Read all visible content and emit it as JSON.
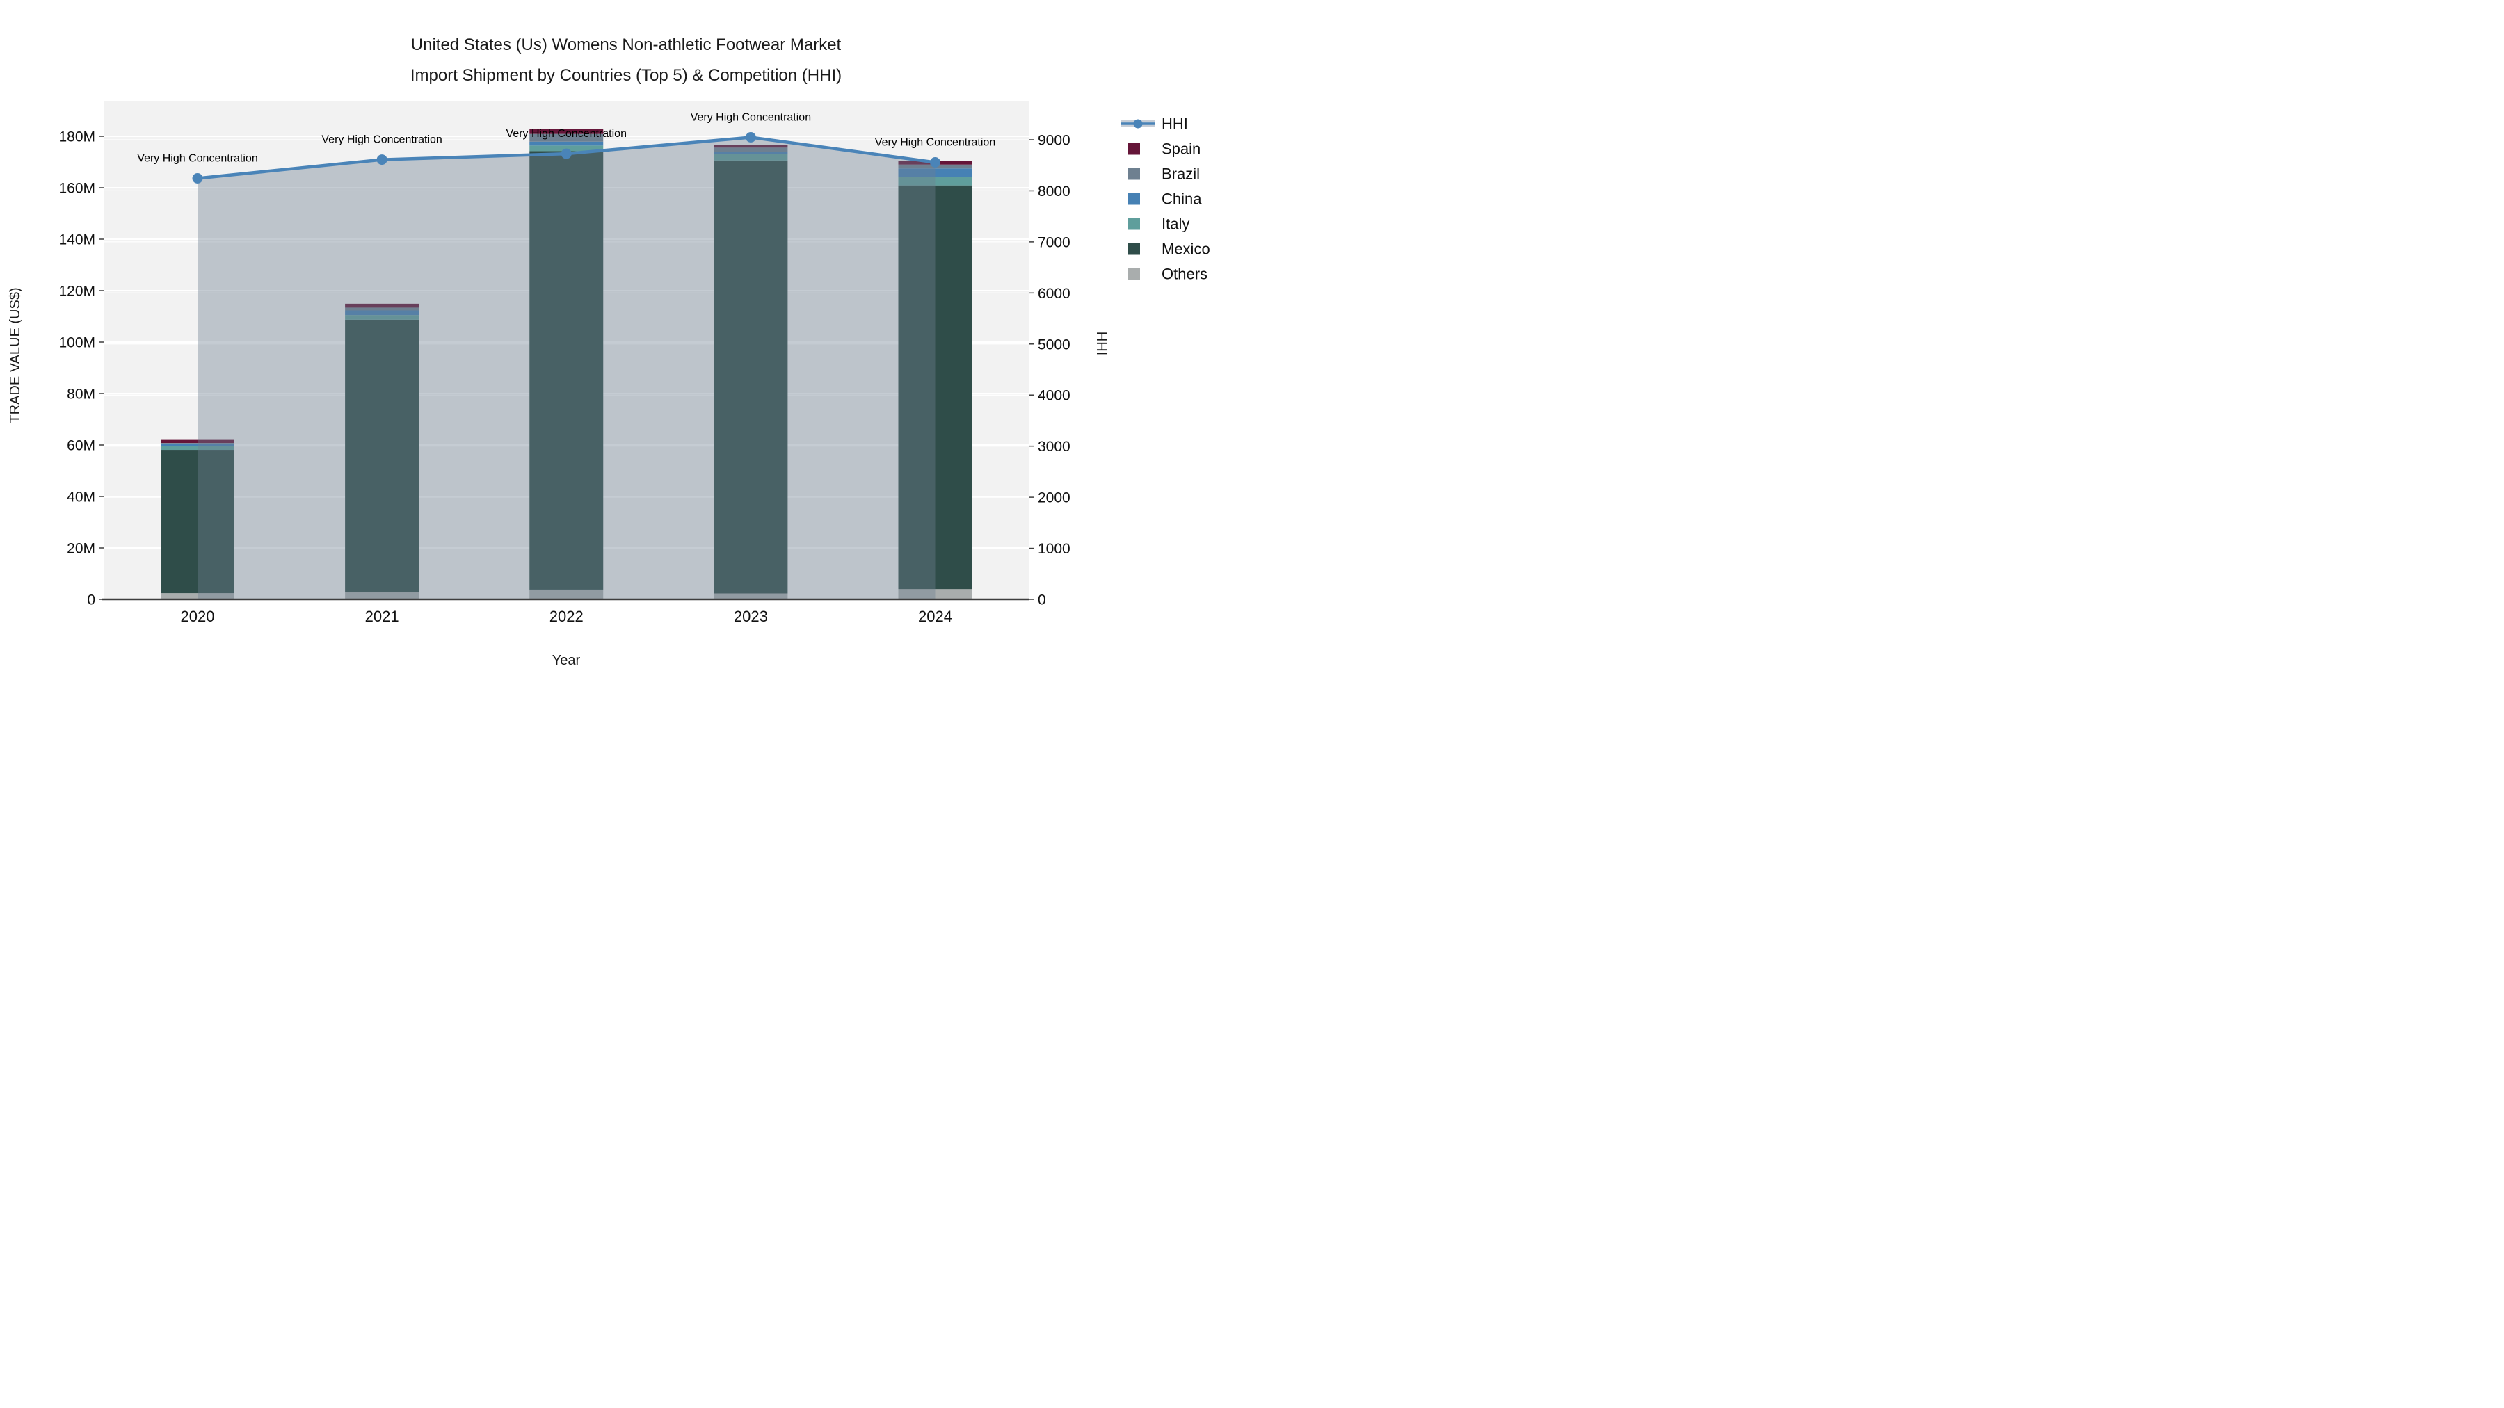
{
  "header": {
    "title_line1": "United States (Us) Womens Non-athletic Footwear Market",
    "title_line2": "Import Shipment by Countries (Top 5) & Competition (HHI)"
  },
  "chart_data": {
    "type": "bar",
    "subtype": "stacked-bar-with-line-overlay",
    "categories": [
      "2020",
      "2021",
      "2022",
      "2023",
      "2024"
    ],
    "xlabel": "Year",
    "ylabel_left": "TRADE VALUE (US$)",
    "ylabel_right": "HHI",
    "ylim_left_millions": [
      0,
      180
    ],
    "ylim_right": [
      0,
      9000
    ],
    "yticks_left": [
      "0",
      "20M",
      "40M",
      "60M",
      "80M",
      "100M",
      "120M",
      "140M",
      "160M",
      "180M"
    ],
    "yticks_right": [
      "0",
      "1000",
      "2000",
      "3000",
      "4000",
      "5000",
      "6000",
      "7000",
      "8000",
      "9000"
    ],
    "grid": true,
    "unit": "US$ millions",
    "stack_order_bottom_to_top": [
      "Others",
      "Mexico",
      "Italy",
      "China",
      "Brazil",
      "Spain"
    ],
    "series": [
      {
        "name": "Spain",
        "color": "#651538",
        "values_millions": [
          1.2,
          1.5,
          1.8,
          0.9,
          1.4
        ]
      },
      {
        "name": "Brazil",
        "color": "#6e8090",
        "values_millions": [
          0.2,
          1.1,
          3.0,
          1.8,
          1.5
        ]
      },
      {
        "name": "China",
        "color": "#4681b4",
        "values_millions": [
          1.1,
          1.8,
          1.5,
          0.8,
          3.4
        ]
      },
      {
        "name": "Italy",
        "color": "#5f9e9c",
        "values_millions": [
          1.4,
          1.8,
          2.2,
          2.4,
          3.2
        ]
      },
      {
        "name": "Mexico",
        "color": "#2f4d49",
        "values_millions": [
          55.7,
          106.0,
          170.4,
          168.3,
          156.9
        ]
      },
      {
        "name": "Others",
        "color": "#a9adad",
        "values_millions": [
          2.4,
          2.7,
          3.8,
          2.3,
          4.0
        ]
      }
    ],
    "totals_millions": [
      62.0,
      114.9,
      182.7,
      176.5,
      170.4
    ],
    "line": {
      "name": "HHI",
      "color": "#4a84b8",
      "area_fill": "rgba(111,127,145,0.40)",
      "values": [
        8244,
        8610,
        8727,
        9047,
        8557
      ]
    },
    "annotations": [
      "Very High Concentration",
      "Very High Concentration",
      "Very High Concentration",
      "Very High Concentration",
      "Very High Concentration"
    ]
  },
  "legend": {
    "entries": [
      {
        "label": "HHI",
        "type": "line",
        "color": "#4a84b8",
        "band_color": "#c6cdd6"
      },
      {
        "label": "Spain",
        "type": "swatch",
        "color": "#651538"
      },
      {
        "label": "Brazil",
        "type": "swatch",
        "color": "#6e8090"
      },
      {
        "label": "China",
        "type": "swatch",
        "color": "#4681b4"
      },
      {
        "label": "Italy",
        "type": "swatch",
        "color": "#5f9e9c"
      },
      {
        "label": "Mexico",
        "type": "swatch",
        "color": "#2f4d49"
      },
      {
        "label": "Others",
        "type": "swatch",
        "color": "#a9adad"
      }
    ]
  },
  "style": {
    "plot_bg": "#f2f2f2",
    "grid_color": "#ffffff",
    "axis_line_color": "#3d3d3d"
  }
}
